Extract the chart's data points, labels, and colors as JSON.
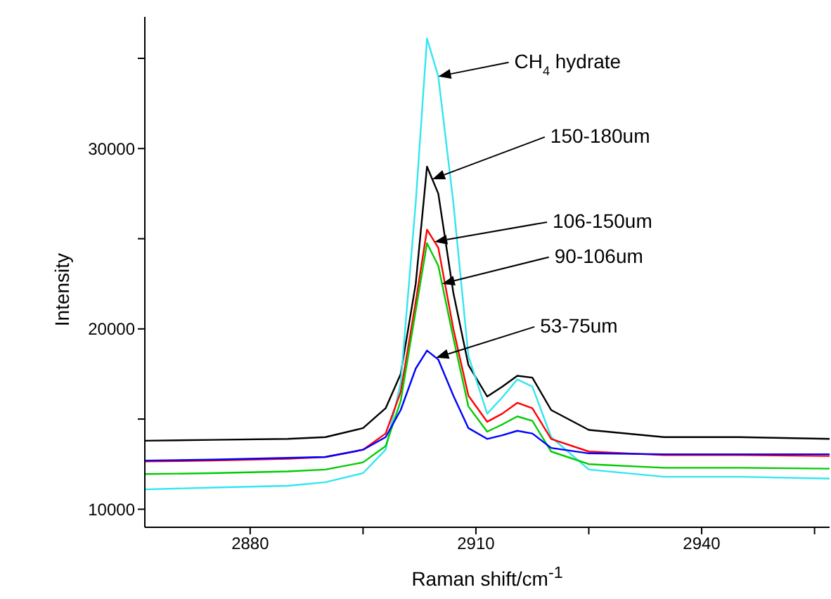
{
  "chart_data": {
    "type": "line",
    "xlabel": "Raman shift/cm$^{-1}$",
    "ylabel": "Intensity",
    "x": [
      2866,
      2875,
      2885,
      2890,
      2895,
      2898,
      2900,
      2902,
      2903.5,
      2905,
      2907,
      2909,
      2911.5,
      2913.5,
      2915.5,
      2917.5,
      2920,
      2925,
      2935,
      2945,
      2957
    ],
    "series": [
      {
        "color": "#000000",
        "values": [
          13800,
          13850,
          13900,
          14000,
          14500,
          15600,
          17500,
          22500,
          29000,
          27500,
          22000,
          18000,
          16250,
          16800,
          17400,
          17300,
          15500,
          14400,
          14000,
          14000,
          13900
        ]
      },
      {
        "color": "#33e6f0",
        "values": [
          11100,
          11200,
          11300,
          11500,
          12000,
          13300,
          17000,
          27000,
          36100,
          34000,
          27000,
          18500,
          15300,
          16200,
          17200,
          16800,
          14000,
          12200,
          11800,
          11800,
          11700
        ]
      },
      {
        "color": "#ff0000",
        "values": [
          12650,
          12700,
          12800,
          12900,
          13300,
          14200,
          16500,
          21500,
          25500,
          24500,
          20000,
          16300,
          14850,
          15300,
          15900,
          15600,
          13900,
          13200,
          13000,
          13000,
          12950
        ]
      },
      {
        "color": "#00cc00",
        "values": [
          11950,
          12000,
          12100,
          12200,
          12600,
          13500,
          16000,
          21000,
          24750,
          23500,
          19500,
          15700,
          14300,
          14700,
          15150,
          14900,
          13200,
          12500,
          12300,
          12300,
          12250
        ]
      },
      {
        "color": "#0000ff",
        "values": [
          12700,
          12750,
          12850,
          12900,
          13300,
          14000,
          15500,
          17800,
          18800,
          18300,
          16300,
          14500,
          13900,
          14100,
          14350,
          14200,
          13400,
          13100,
          13050,
          13050,
          13050
        ]
      }
    ],
    "xlim": [
      2866,
      2957
    ],
    "xticks": [
      2880,
      {
        "value": 2895,
        "label": null
      },
      2910,
      {
        "value": 2925,
        "label": null
      },
      2940,
      {
        "value": 2955,
        "label": null
      }
    ],
    "ylim": [
      9000,
      37300
    ],
    "yticks": [
      10000,
      {
        "value": 15000,
        "label": null
      },
      20000,
      {
        "value": 25000,
        "label": null
      },
      30000,
      {
        "value": 35000,
        "label": null
      }
    ],
    "grid": false,
    "marker": "none",
    "line_style": "solid",
    "annotations": [
      {
        "text": "CH$_{4}$ hydrate",
        "x": 2905,
        "y": 34000
      },
      {
        "text": "150-180um",
        "x": 2904.2,
        "y": 28300
      },
      {
        "text": "106-150um",
        "x": 2904.5,
        "y": 24830
      },
      {
        "text": "90-106um",
        "x": 2905.5,
        "y": 22500
      },
      {
        "text": "53-75um",
        "x": 2904.7,
        "y": 18400
      }
    ]
  }
}
